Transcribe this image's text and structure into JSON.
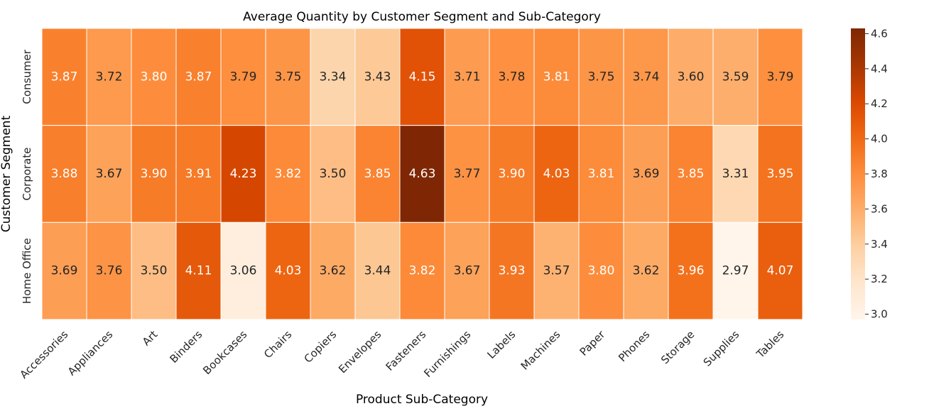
{
  "chart_data": {
    "type": "heatmap",
    "title": "Average Quantity by Customer Segment and Sub-Category",
    "xlabel": "Product Sub-Category",
    "ylabel": "Customer Segment",
    "x_categories": [
      "Accessories",
      "Appliances",
      "Art",
      "Binders",
      "Bookcases",
      "Chairs",
      "Copiers",
      "Envelopes",
      "Fasteners",
      "Furnishings",
      "Labels",
      "Machines",
      "Paper",
      "Phones",
      "Storage",
      "Supplies",
      "Tables"
    ],
    "y_categories": [
      "Consumer",
      "Corporate",
      "Home Office"
    ],
    "values": [
      [
        3.87,
        3.72,
        3.8,
        3.87,
        3.79,
        3.75,
        3.34,
        3.43,
        4.15,
        3.71,
        3.78,
        3.81,
        3.75,
        3.74,
        3.6,
        3.59,
        3.79
      ],
      [
        3.88,
        3.67,
        3.9,
        3.91,
        4.23,
        3.82,
        3.5,
        3.85,
        4.63,
        3.77,
        3.9,
        4.03,
        3.81,
        3.69,
        3.85,
        3.31,
        3.95
      ],
      [
        3.69,
        3.76,
        3.5,
        4.11,
        3.06,
        4.03,
        3.62,
        3.44,
        3.82,
        3.67,
        3.93,
        3.57,
        3.8,
        3.62,
        3.96,
        2.97,
        4.07
      ]
    ],
    "colorbar": {
      "ticks": [
        "3.0",
        "3.2",
        "3.4",
        "3.6",
        "3.8",
        "4.0",
        "4.2",
        "4.4",
        "4.6"
      ],
      "range": [
        2.97,
        4.63
      ],
      "colormap": "Oranges"
    }
  }
}
